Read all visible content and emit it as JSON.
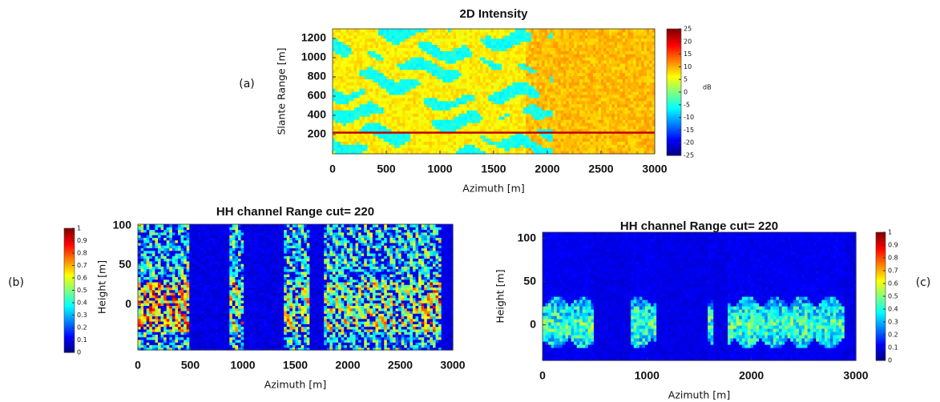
{
  "chart_data": [
    {
      "type": "heatmap",
      "panel_label": "(a)",
      "title": "2D Intensity",
      "xlabel": "Azimuth [m]",
      "ylabel": "Slante Range [m]",
      "xlim": [
        0,
        3000
      ],
      "xticks": [
        0,
        500,
        1000,
        1500,
        2000,
        2500,
        3000
      ],
      "ylim": [
        0,
        1300
      ],
      "yticks": [
        200,
        400,
        600,
        800,
        1000,
        1200
      ],
      "colorbar": {
        "lim": [
          -25,
          25
        ],
        "ticks": [
          -25,
          -20,
          -15,
          -10,
          -5,
          0,
          5,
          10,
          15,
          20,
          25
        ],
        "label": "dB"
      },
      "hline": 220,
      "hline_color": "#c00000"
    },
    {
      "type": "heatmap",
      "panel_label": "(b)",
      "title": "HH channel Range cut=  220",
      "xlabel": "Azimuth [m]",
      "ylabel": "Height [m]",
      "xlim": [
        0,
        3000
      ],
      "xticks": [
        0,
        500,
        1000,
        1500,
        2000,
        2500,
        3000
      ],
      "ylim": [
        -58,
        102
      ],
      "yticks": [
        0,
        50,
        100
      ],
      "colorbar": {
        "lim": [
          0,
          1
        ],
        "ticks": [
          0,
          0.1,
          0.2,
          0.3,
          0.4,
          0.5,
          0.6,
          0.7,
          0.8,
          0.9,
          1
        ]
      }
    },
    {
      "type": "heatmap",
      "panel_label": "(c)",
      "title": "HH channel Range cut=  220",
      "xlabel": "Azimuth [m]",
      "ylabel": "Height [m]",
      "xlim": [
        0,
        3000
      ],
      "xticks": [
        0,
        1000,
        2000,
        3000
      ],
      "ylim": [
        -41,
        107
      ],
      "yticks": [
        0,
        50,
        100
      ],
      "colorbar": {
        "lim": [
          0,
          1
        ],
        "ticks": [
          0,
          0.1,
          0.2,
          0.3,
          0.4,
          0.5,
          0.6,
          0.7,
          0.8,
          0.9,
          1
        ]
      }
    }
  ]
}
